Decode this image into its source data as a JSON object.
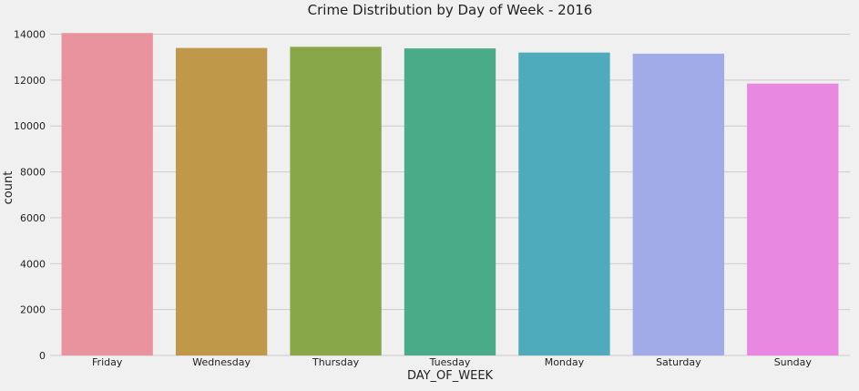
{
  "chart_data": {
    "type": "bar",
    "title": "Crime Distribution by Day of Week - 2016",
    "xlabel": "DAY_OF_WEEK",
    "ylabel": "count",
    "categories": [
      "Friday",
      "Wednesday",
      "Thursday",
      "Tuesday",
      "Monday",
      "Saturday",
      "Sunday"
    ],
    "values": [
      14050,
      13400,
      13450,
      13380,
      13200,
      13150,
      11850
    ],
    "colors": [
      "#e8939e",
      "#c0984a",
      "#88a748",
      "#4aab88",
      "#4eabbb",
      "#a0abe8",
      "#e888e0"
    ],
    "ylim": [
      0,
      14100
    ],
    "yticks": [
      0,
      2000,
      4000,
      6000,
      8000,
      10000,
      12000,
      14000
    ],
    "grid": true,
    "background": "#f0f0f0"
  }
}
